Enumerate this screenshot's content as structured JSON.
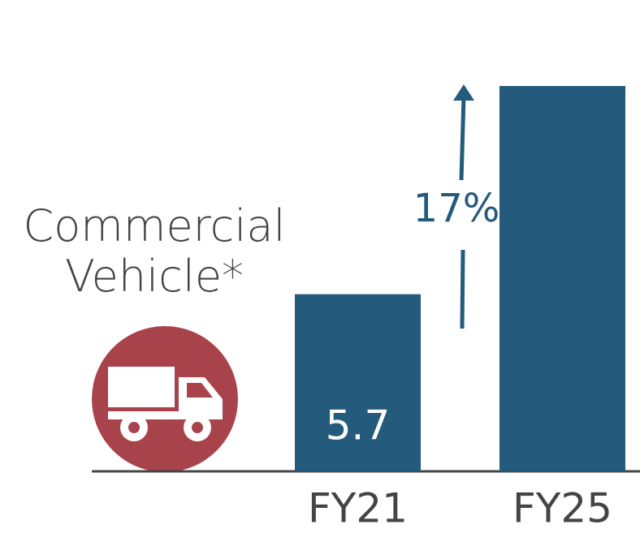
{
  "chart_data": {
    "type": "bar",
    "title": "Commercial Vehicle*",
    "categories": [
      "FY21",
      "FY25"
    ],
    "values": [
      5.7,
      12.4
    ],
    "value_labels": [
      "5.7",
      null
    ],
    "color": "#245a7c",
    "annotation": "17%"
  }
}
